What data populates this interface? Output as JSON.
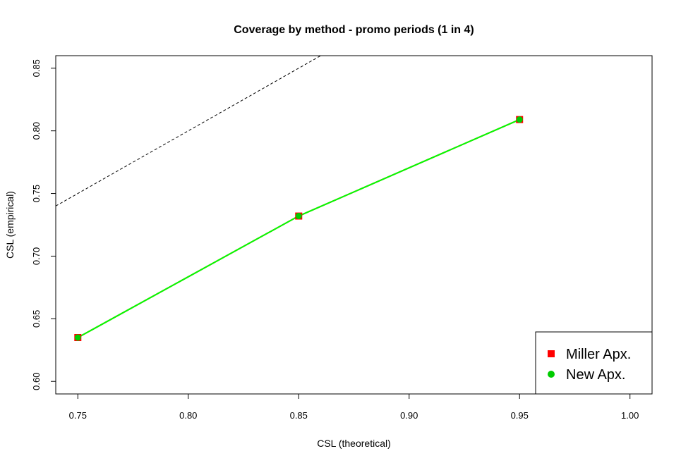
{
  "chart_data": {
    "type": "line",
    "title": "Coverage by method - promo periods (1 in 4)",
    "xlabel": "CSL (theoretical)",
    "ylabel": "CSL (empirical)",
    "xlim": [
      0.74,
      1.01
    ],
    "ylim": [
      0.59,
      0.86
    ],
    "x_ticks": [
      "0.75",
      "0.80",
      "0.85",
      "0.90",
      "0.95",
      "1.00"
    ],
    "y_ticks": [
      "0.60",
      "0.65",
      "0.70",
      "0.75",
      "0.80",
      "0.85"
    ],
    "x": [
      0.75,
      0.85,
      0.95
    ],
    "series": [
      {
        "name": "Miller Apx.",
        "values": [
          0.635,
          0.732,
          0.809
        ],
        "color": "#ff0000",
        "marker": "square"
      },
      {
        "name": "New Apx.",
        "values": [
          0.635,
          0.732,
          0.809
        ],
        "color": "#00cc00",
        "marker": "circle",
        "line_color": "#00ff00"
      }
    ],
    "reference_line": {
      "style": "dashed",
      "color": "#000000",
      "points": [
        [
          0.74,
          0.74
        ],
        [
          0.86,
          0.86
        ]
      ]
    },
    "legend": {
      "position": "bottom-right"
    },
    "grid": false
  }
}
